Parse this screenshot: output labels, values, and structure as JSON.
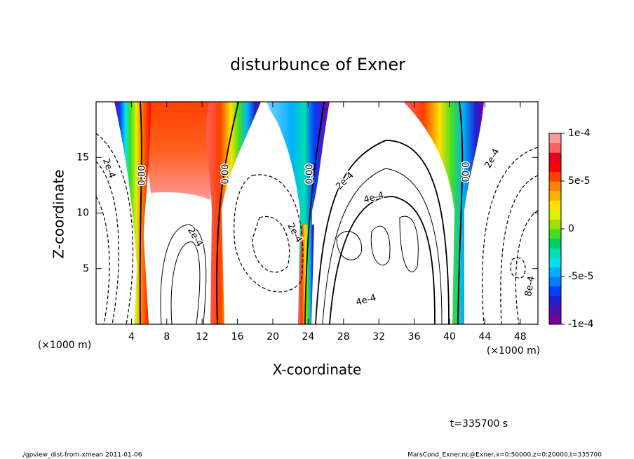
{
  "chart_data": {
    "type": "contour",
    "title": "disturbunce of Exner",
    "x_label": "X-coordinate",
    "y_label": "Z-coordinate",
    "unit_labels": [
      "(×1000 m)",
      "(×1000 m)"
    ],
    "xlim": [
      0,
      50
    ],
    "xticks": [
      4,
      8,
      12,
      16,
      20,
      24,
      28,
      32,
      36,
      40,
      44,
      48
    ],
    "ylim": [
      0,
      20
    ],
    "yticks": [
      5,
      10,
      15
    ],
    "colorbar": {
      "clim": [
        -0.0001,
        0.0001
      ],
      "ticks": [
        {
          "value": 0.0001,
          "label": "1e-4"
        },
        {
          "value": 5e-05,
          "label": "5e-5"
        },
        0,
        {
          "value": -5e-05,
          "label": "-5e-5"
        },
        {
          "value": -0.0001,
          "label": "-1e-4"
        }
      ],
      "colors": [
        "#7a00a0",
        "#4b10b0",
        "#2020d0",
        "#0040ff",
        "#0080ff",
        "#00b0ff",
        "#00e0f0",
        "#00e0b0",
        "#00d060",
        "#40e020",
        "#a0e000",
        "#e0f000",
        "#ffe000",
        "#ffb000",
        "#ff8000",
        "#ff4000",
        "#ff0000",
        "#e80020",
        "#ff6060",
        "#ff9898"
      ]
    },
    "annotations": [
      "2e-4",
      "0.00",
      "2e-4",
      "0.00",
      "2e-4",
      "0.00",
      "2e-4",
      "4e-4",
      "4e-4",
      "0.00",
      "2e-4",
      "8e-4"
    ],
    "time_label": "t=335700 s",
    "footer_left": "./gpview_dist-from-xmean  2011-01-06",
    "footer_right": "MarsCond_Exner.nc@Exner,x=0:50000,z=0:20000,t=335700"
  }
}
